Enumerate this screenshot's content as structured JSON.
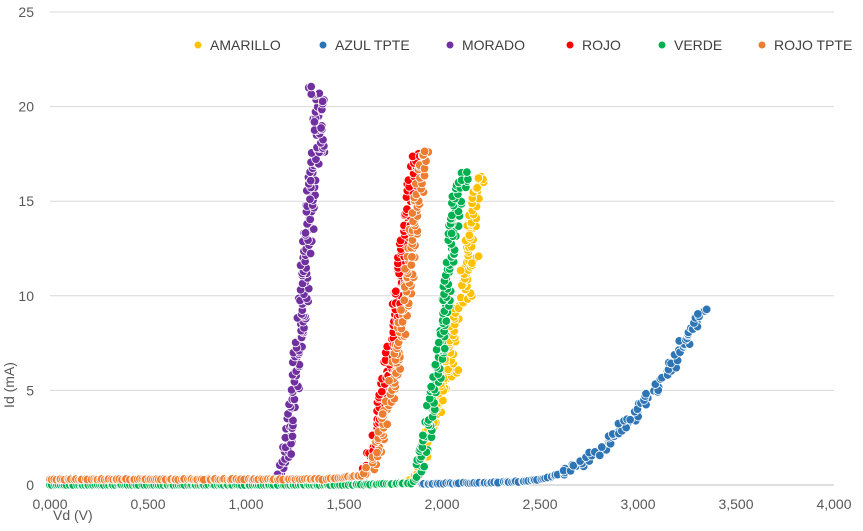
{
  "chart_data": {
    "type": "scatter",
    "title": "",
    "xlabel": "Vd (V)",
    "ylabel": "Id (mA)",
    "xlim": [
      0,
      4
    ],
    "ylim": [
      0,
      25
    ],
    "x_ticks": [
      0,
      0.5,
      1,
      1.5,
      2,
      2.5,
      3,
      3.5,
      4
    ],
    "x_tick_labels": [
      "0,000",
      "0,500",
      "1,000",
      "1,500",
      "2,000",
      "2,500",
      "3,000",
      "3,500",
      "4,000"
    ],
    "y_ticks": [
      0,
      5,
      10,
      15,
      20,
      25
    ],
    "y_tick_labels": [
      "0",
      "5",
      "10",
      "15",
      "20",
      "25"
    ],
    "grid": "horizontal",
    "legend_position": "top-right",
    "series": [
      {
        "name": "AMARILLO",
        "color": "#FFC000",
        "points": [
          [
            1.8,
            0.1
          ],
          [
            1.85,
            0.3
          ],
          [
            1.88,
            0.8
          ],
          [
            1.9,
            1.5
          ],
          [
            1.92,
            2.2
          ],
          [
            1.95,
            3.0
          ],
          [
            1.97,
            3.8
          ],
          [
            1.99,
            4.5
          ],
          [
            2.01,
            5.5
          ],
          [
            2.03,
            6.5
          ],
          [
            2.05,
            7.5
          ],
          [
            2.07,
            8.5
          ],
          [
            2.09,
            9.5
          ],
          [
            2.1,
            10.5
          ],
          [
            2.12,
            11.5
          ],
          [
            2.13,
            12.5
          ],
          [
            2.15,
            13.5
          ],
          [
            2.16,
            14.5
          ],
          [
            2.18,
            15.5
          ],
          [
            2.2,
            16.3
          ],
          [
            2.17,
            12.0
          ],
          [
            2.14,
            10.0
          ],
          [
            2.08,
            6.0
          ]
        ]
      },
      {
        "name": "AZUL TPTE",
        "color": "#2E75B6",
        "points": [
          [
            1.9,
            0.05
          ],
          [
            2.0,
            0.08
          ],
          [
            2.1,
            0.1
          ],
          [
            2.2,
            0.12
          ],
          [
            2.3,
            0.15
          ],
          [
            2.4,
            0.18
          ],
          [
            2.5,
            0.3
          ],
          [
            2.55,
            0.4
          ],
          [
            2.6,
            0.6
          ],
          [
            2.65,
            0.8
          ],
          [
            2.7,
            1.1
          ],
          [
            2.75,
            1.4
          ],
          [
            2.8,
            1.8
          ],
          [
            2.85,
            2.3
          ],
          [
            2.9,
            2.8
          ],
          [
            2.95,
            3.3
          ],
          [
            3.0,
            3.9
          ],
          [
            3.05,
            4.6
          ],
          [
            3.1,
            5.3
          ],
          [
            3.15,
            6.0
          ],
          [
            3.2,
            6.9
          ],
          [
            3.25,
            7.8
          ],
          [
            3.3,
            8.6
          ],
          [
            3.34,
            9.2
          ]
        ]
      },
      {
        "name": "MORADO",
        "color": "#7030A0",
        "points": [
          [
            1.15,
            0.1
          ],
          [
            1.18,
            0.6
          ],
          [
            1.2,
            1.5
          ],
          [
            1.22,
            2.5
          ],
          [
            1.23,
            3.5
          ],
          [
            1.24,
            4.5
          ],
          [
            1.25,
            5.5
          ],
          [
            1.26,
            6.5
          ],
          [
            1.27,
            7.5
          ],
          [
            1.28,
            8.5
          ],
          [
            1.29,
            9.5
          ],
          [
            1.3,
            10.5
          ],
          [
            1.3,
            11.5
          ],
          [
            1.31,
            12.5
          ],
          [
            1.32,
            13.5
          ],
          [
            1.33,
            14.5
          ],
          [
            1.33,
            15.5
          ],
          [
            1.34,
            16.5
          ],
          [
            1.35,
            17.5
          ],
          [
            1.36,
            18.5
          ],
          [
            1.37,
            19.5
          ],
          [
            1.38,
            20.5
          ],
          [
            1.32,
            21.0
          ],
          [
            1.4,
            17.6
          ]
        ]
      },
      {
        "name": "ROJO",
        "color": "#FF0000",
        "points": [
          [
            1.55,
            0.1
          ],
          [
            1.6,
            0.4
          ],
          [
            1.63,
            1.0
          ],
          [
            1.65,
            2.0
          ],
          [
            1.67,
            3.0
          ],
          [
            1.69,
            4.0
          ],
          [
            1.7,
            5.0
          ],
          [
            1.72,
            6.0
          ],
          [
            1.73,
            7.0
          ],
          [
            1.75,
            8.0
          ],
          [
            1.76,
            9.0
          ],
          [
            1.78,
            10.0
          ],
          [
            1.79,
            11.0
          ],
          [
            1.8,
            12.0
          ],
          [
            1.81,
            13.0
          ],
          [
            1.83,
            14.0
          ],
          [
            1.84,
            15.0
          ],
          [
            1.85,
            16.0
          ],
          [
            1.86,
            17.0
          ],
          [
            1.88,
            17.5
          ]
        ]
      },
      {
        "name": "VERDE",
        "color": "#00B050",
        "points": [
          [
            0.0,
            0.0
          ],
          [
            0.5,
            0.0
          ],
          [
            1.0,
            0.0
          ],
          [
            1.5,
            0.0
          ],
          [
            1.85,
            0.1
          ],
          [
            1.88,
            0.5
          ],
          [
            1.9,
            1.5
          ],
          [
            1.92,
            2.5
          ],
          [
            1.94,
            3.5
          ],
          [
            1.95,
            4.5
          ],
          [
            1.97,
            5.5
          ],
          [
            1.98,
            6.5
          ],
          [
            2.0,
            7.5
          ],
          [
            2.01,
            8.5
          ],
          [
            2.02,
            9.5
          ],
          [
            2.03,
            10.5
          ],
          [
            2.04,
            11.5
          ],
          [
            2.05,
            12.5
          ],
          [
            2.06,
            13.5
          ],
          [
            2.07,
            14.5
          ],
          [
            2.08,
            15.5
          ],
          [
            2.1,
            16.5
          ],
          [
            2.12,
            16.0
          ]
        ]
      },
      {
        "name": "ROJO TPTE",
        "color": "#ED7D31",
        "points": [
          [
            0.0,
            0.3
          ],
          [
            0.2,
            0.3
          ],
          [
            0.4,
            0.3
          ],
          [
            0.6,
            0.3
          ],
          [
            0.8,
            0.3
          ],
          [
            1.0,
            0.3
          ],
          [
            1.2,
            0.3
          ],
          [
            1.4,
            0.3
          ],
          [
            1.6,
            0.5
          ],
          [
            1.65,
            1.0
          ],
          [
            1.68,
            2.0
          ],
          [
            1.7,
            3.0
          ],
          [
            1.72,
            4.0
          ],
          [
            1.74,
            5.0
          ],
          [
            1.76,
            6.0
          ],
          [
            1.78,
            7.0
          ],
          [
            1.79,
            8.0
          ],
          [
            1.8,
            9.0
          ],
          [
            1.82,
            10.0
          ],
          [
            1.83,
            11.0
          ],
          [
            1.84,
            12.0
          ],
          [
            1.85,
            13.0
          ],
          [
            1.86,
            14.0
          ],
          [
            1.88,
            15.0
          ],
          [
            1.89,
            16.0
          ],
          [
            1.91,
            17.0
          ],
          [
            1.93,
            17.6
          ]
        ]
      }
    ]
  }
}
